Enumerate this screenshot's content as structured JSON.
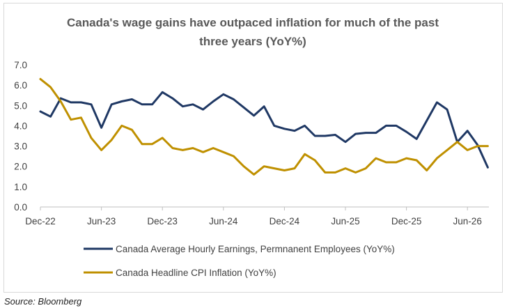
{
  "source": "Source: Bloomberg",
  "chart_data": {
    "type": "line",
    "title_lines": [
      "Canada's wage gains have outpaced inflation for much of the past",
      "three years (YoY%)"
    ],
    "xlabel": "",
    "ylabel": "",
    "ylim": [
      0,
      7
    ],
    "y_ticks": [
      "0.0",
      "1.0",
      "2.0",
      "3.0",
      "4.0",
      "5.0",
      "6.0",
      "7.0"
    ],
    "x_ticks": [
      "Dec-22",
      "Jun-23",
      "Dec-23",
      "Jun-24",
      "Dec-24",
      "Jun-25",
      "Dec-25",
      "Jun-26"
    ],
    "x_start": "Dec-22",
    "x_end": "Aug-26",
    "grid": false,
    "legend_position": "bottom",
    "series": [
      {
        "name": "Canada Average Hourly Earnings, Permnanent Employees (YoY%)",
        "color": "#1f3864",
        "values": [
          4.7,
          4.45,
          5.35,
          5.15,
          5.15,
          5.05,
          3.9,
          5.05,
          5.2,
          5.3,
          5.05,
          5.05,
          5.65,
          5.35,
          4.95,
          5.05,
          4.8,
          5.2,
          5.55,
          5.3,
          4.9,
          4.5,
          4.95,
          4.0,
          3.85,
          3.75,
          4.0,
          3.5,
          3.5,
          3.55,
          3.2,
          3.6,
          3.65,
          3.65,
          4.0,
          4.0,
          3.7,
          3.35,
          4.25,
          5.15,
          4.8,
          3.2,
          3.75,
          3.05,
          1.95
        ]
      },
      {
        "name": "Canada Headline CPI Inflation (YoY%)",
        "color": "#bf9000",
        "values": [
          6.3,
          5.9,
          5.2,
          4.3,
          4.4,
          3.4,
          2.8,
          3.3,
          4.0,
          3.8,
          3.1,
          3.1,
          3.4,
          2.9,
          2.8,
          2.9,
          2.7,
          2.9,
          2.7,
          2.5,
          2.0,
          1.6,
          2.0,
          1.9,
          1.8,
          1.9,
          2.6,
          2.3,
          1.7,
          1.7,
          1.9,
          1.7,
          1.9,
          2.4,
          2.2,
          2.2,
          2.4,
          2.3,
          1.8,
          2.4,
          2.8,
          3.2,
          2.8,
          3.0,
          3.0
        ]
      }
    ]
  }
}
